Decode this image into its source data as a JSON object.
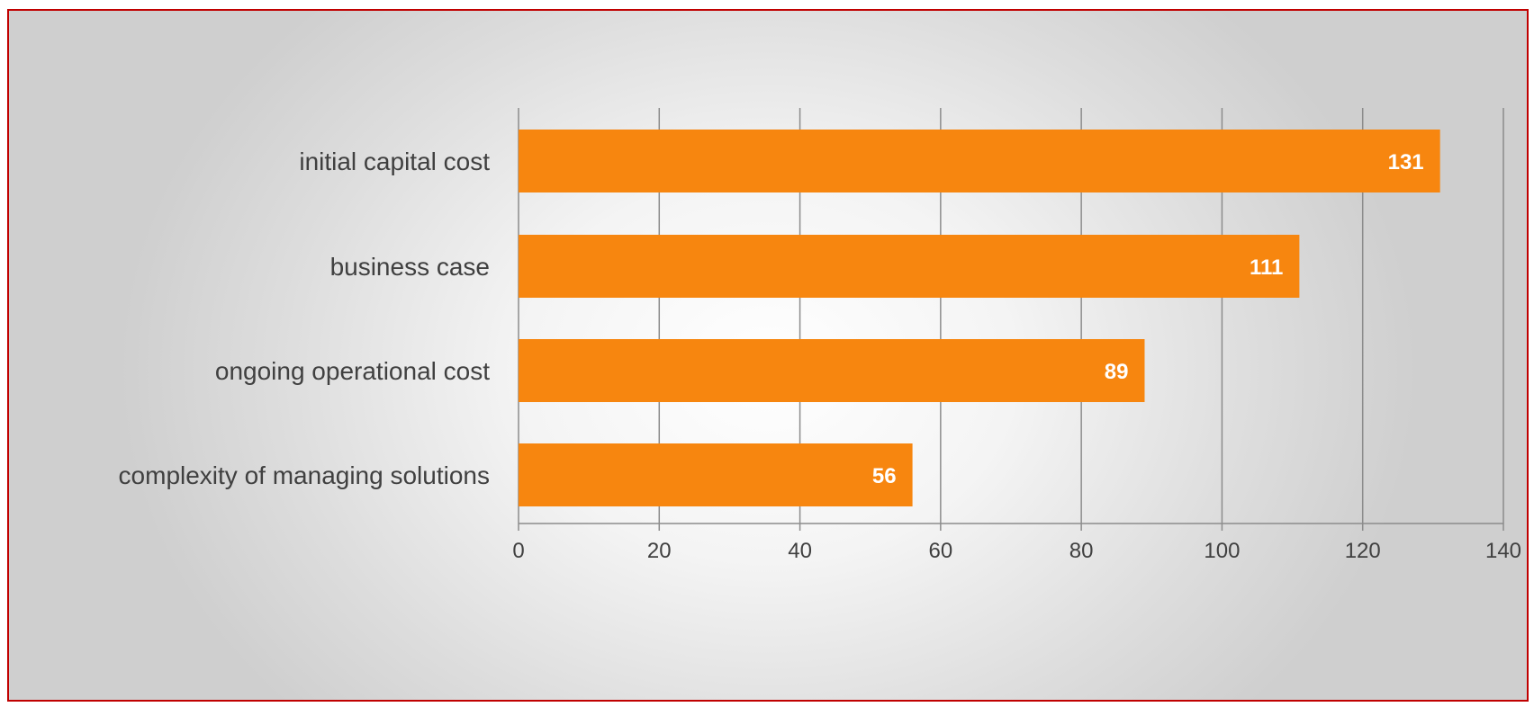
{
  "chart_data": {
    "type": "bar",
    "orientation": "horizontal",
    "categories": [
      "initial capital cost",
      "business case",
      "ongoing operational cost",
      "complexity of managing solutions"
    ],
    "values": [
      131,
      111,
      89,
      56
    ],
    "data_labels": [
      "131",
      "111",
      "89",
      "56"
    ],
    "x_ticks": [
      "0",
      "20",
      "40",
      "60",
      "80",
      "100",
      "120",
      "140"
    ],
    "xlim": [
      0,
      140
    ],
    "grid": "vertical",
    "legend": "none",
    "title": "",
    "xlabel": "",
    "ylabel": ""
  },
  "colors": {
    "bar": "#f7860f",
    "border": "#c00000",
    "grid": "#8c8c8c"
  }
}
